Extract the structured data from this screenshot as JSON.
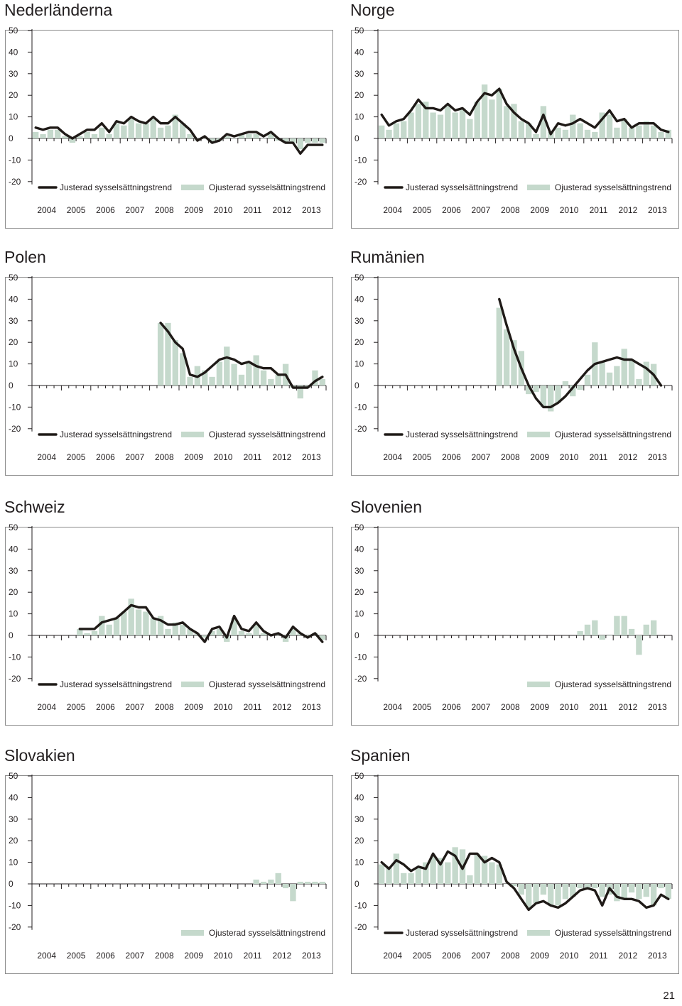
{
  "page_number": "21",
  "colors": {
    "bar": "#c5d9cc",
    "line": "#1f1a17",
    "axis": "#231f20",
    "frame": "#8a8a8a"
  },
  "chart_data": [
    {
      "title": "Nederländerna",
      "type": "bar+line",
      "x_labels": [
        "2004",
        "2005",
        "2006",
        "2007",
        "2008",
        "2009",
        "2010",
        "2011",
        "2012",
        "2013"
      ],
      "y_ticks": [
        50,
        40,
        30,
        20,
        10,
        0,
        -10,
        -20
      ],
      "ylim": [
        -20,
        50
      ],
      "legend_position": "bottom",
      "series": [
        {
          "name": "Justerad sysselsättningstrend",
          "kind": "line",
          "start_q": 0,
          "values": [
            5,
            4,
            5,
            5,
            2,
            0,
            2,
            4,
            4,
            7,
            3,
            8,
            7,
            10,
            8,
            7,
            10,
            7,
            7,
            10,
            7,
            4,
            -1,
            1,
            -2,
            -1,
            2,
            1,
            2,
            3,
            3,
            1,
            3,
            0,
            -2,
            -2,
            -7,
            -3,
            -3,
            -3
          ]
        },
        {
          "name": "Ojusterad sysselsättningstrend",
          "kind": "bar",
          "start_q": 0,
          "values": [
            3,
            2,
            4,
            4,
            1,
            -2,
            1,
            3,
            2,
            5,
            2,
            7,
            6,
            9,
            7,
            7,
            9,
            5,
            6,
            11,
            7,
            2,
            -1,
            0,
            -2,
            -1,
            1,
            0,
            2,
            2,
            2,
            0,
            2,
            -1,
            -2,
            -2,
            -5,
            -2,
            -2,
            -2
          ]
        }
      ]
    },
    {
      "title": "Norge",
      "type": "bar+line",
      "x_labels": [
        "2004",
        "2005",
        "2006",
        "2007",
        "2008",
        "2009",
        "2010",
        "2011",
        "2012",
        "2013"
      ],
      "y_ticks": [
        50,
        40,
        30,
        20,
        10,
        0,
        -10,
        -20
      ],
      "ylim": [
        -20,
        50
      ],
      "legend_position": "bottom",
      "series": [
        {
          "name": "Justerad sysselsättningstrend",
          "kind": "line",
          "start_q": 0,
          "values": [
            11,
            6,
            8,
            9,
            13,
            18,
            14,
            14,
            13,
            16,
            13,
            14,
            11,
            17,
            21,
            20,
            23,
            16,
            12,
            9,
            7,
            3,
            11,
            2,
            7,
            6,
            7,
            9,
            7,
            5,
            9,
            13,
            8,
            9,
            5,
            7,
            7,
            7,
            4,
            3
          ]
        },
        {
          "name": "Ojusterad sysselsättningstrend",
          "kind": "bar",
          "start_q": 0,
          "values": [
            6,
            4,
            7,
            8,
            12,
            16,
            17,
            12,
            11,
            15,
            12,
            14,
            9,
            17,
            25,
            18,
            23,
            15,
            16,
            8,
            7,
            2,
            15,
            3,
            5,
            4,
            11,
            7,
            4,
            3,
            12,
            11,
            5,
            9,
            5,
            6,
            8,
            6,
            3,
            4
          ]
        }
      ]
    },
    {
      "title": "Polen",
      "type": "bar+line",
      "x_labels": [
        "2004",
        "2005",
        "2006",
        "2007",
        "2008",
        "2009",
        "2010",
        "2011",
        "2012",
        "2013"
      ],
      "y_ticks": [
        50,
        40,
        30,
        20,
        10,
        0,
        -10,
        -20
      ],
      "ylim": [
        -20,
        50
      ],
      "legend_position": "bottom",
      "series": [
        {
          "name": "Justerad sysselsättningstrend",
          "kind": "line",
          "start_q": 17,
          "values": [
            29,
            25,
            20,
            17,
            5,
            4,
            6,
            9,
            12,
            13,
            12,
            10,
            11,
            9,
            8,
            8,
            5,
            5,
            -1,
            -1,
            -1,
            2,
            4
          ]
        },
        {
          "name": "Ojusterad sysselsättningstrend",
          "kind": "bar",
          "start_q": 17,
          "values": [
            29,
            29,
            21,
            15,
            4,
            9,
            7,
            4,
            11,
            18,
            10,
            5,
            11,
            14,
            7,
            3,
            5,
            10,
            -1,
            -6,
            -1,
            7,
            3
          ]
        }
      ]
    },
    {
      "title": "Rumänien",
      "type": "bar+line",
      "x_labels": [
        "2004",
        "2005",
        "2006",
        "2007",
        "2008",
        "2009",
        "2010",
        "2011",
        "2012",
        "2013"
      ],
      "y_ticks": [
        50,
        40,
        30,
        20,
        10,
        0,
        -10,
        -20
      ],
      "ylim": [
        -20,
        50
      ],
      "legend_position": "bottom",
      "series": [
        {
          "name": "Justerad sysselsättningstrend",
          "kind": "line",
          "start_q": 16,
          "values": [
            40,
            28,
            17,
            8,
            0,
            -6,
            -10,
            -10,
            -8,
            -5,
            -1,
            3,
            7,
            10,
            11,
            12,
            13,
            12,
            12,
            10,
            8,
            5,
            0
          ]
        },
        {
          "name": "Ojusterad sysselsättningstrend",
          "kind": "bar",
          "start_q": 16,
          "values": [
            36,
            26,
            21,
            16,
            -4,
            -3,
            -10,
            -12,
            -8,
            2,
            -5,
            -2,
            5,
            20,
            11,
            6,
            9,
            17,
            12,
            3,
            11,
            10,
            0
          ]
        }
      ]
    },
    {
      "title": "Schweiz",
      "type": "bar+line",
      "x_labels": [
        "2004",
        "2005",
        "2006",
        "2007",
        "2008",
        "2009",
        "2010",
        "2011",
        "2012",
        "2013"
      ],
      "y_ticks": [
        50,
        40,
        30,
        20,
        10,
        0,
        -10,
        -20
      ],
      "ylim": [
        -20,
        50
      ],
      "legend_position": "bottom",
      "series": [
        {
          "name": "Justerad sysselsättningstrend",
          "kind": "line",
          "start_q": 6,
          "values": [
            3,
            3,
            3,
            6,
            7,
            8,
            11,
            14,
            13,
            13,
            8,
            7,
            5,
            5,
            6,
            3,
            1,
            -3,
            3,
            4,
            -1,
            9,
            3,
            2,
            6,
            2,
            0,
            1,
            -1,
            4,
            1,
            -1,
            1,
            -3
          ]
        },
        {
          "name": "Ojusterad sysselsättningstrend",
          "kind": "bar",
          "start_q": 6,
          "values": [
            3,
            1,
            2,
            9,
            5,
            8,
            11,
            17,
            12,
            11,
            8,
            9,
            3,
            6,
            5,
            3,
            1,
            -1,
            2,
            3,
            -3,
            8,
            2,
            1,
            5,
            1,
            0,
            1,
            -3,
            3,
            1,
            -1,
            1,
            -2
          ]
        }
      ]
    },
    {
      "title": "Slovenien",
      "type": "bar",
      "x_labels": [
        "2004",
        "2005",
        "2006",
        "2007",
        "2008",
        "2009",
        "2010",
        "2011",
        "2012",
        "2013"
      ],
      "y_ticks": [
        50,
        40,
        30,
        20,
        10,
        0,
        -10,
        -20
      ],
      "ylim": [
        -20,
        50
      ],
      "legend_position": "bottom",
      "series": [
        {
          "name": "Ojusterad sysselsättningstrend",
          "kind": "bar",
          "start_q": 27,
          "values": [
            2,
            5,
            7,
            -2,
            0,
            9,
            9,
            3,
            -9,
            5,
            7
          ]
        }
      ]
    },
    {
      "title": "Slovakien",
      "type": "bar",
      "x_labels": [
        "2004",
        "2005",
        "2006",
        "2007",
        "2008",
        "2009",
        "2010",
        "2011",
        "2012",
        "2013"
      ],
      "y_ticks": [
        50,
        40,
        30,
        20,
        10,
        0,
        -10,
        -20
      ],
      "ylim": [
        -20,
        50
      ],
      "legend_position": "bottom",
      "series": [
        {
          "name": "Ojusterad sysselsättningstrend",
          "kind": "bar",
          "start_q": 30,
          "values": [
            2,
            1,
            2,
            5,
            -2,
            -8,
            1,
            1,
            1,
            1
          ]
        }
      ]
    },
    {
      "title": "Spanien",
      "type": "bar+line",
      "x_labels": [
        "2004",
        "2005",
        "2006",
        "2007",
        "2008",
        "2009",
        "2010",
        "2011",
        "2012",
        "2013"
      ],
      "y_ticks": [
        50,
        40,
        30,
        20,
        10,
        0,
        -10,
        -20
      ],
      "ylim": [
        -20,
        50
      ],
      "legend_position": "bottom",
      "series": [
        {
          "name": "Justerad sysselsättningstrend",
          "kind": "line",
          "start_q": 0,
          "values": [
            10,
            7,
            11,
            9,
            6,
            8,
            7,
            14,
            9,
            15,
            13,
            7,
            14,
            14,
            10,
            12,
            10,
            1,
            -2,
            -7,
            -12,
            -9,
            -8,
            -10,
            -11,
            -9,
            -6,
            -3,
            -2,
            -3,
            -10,
            -2,
            -6,
            -7,
            -7,
            -8,
            -11,
            -10,
            -5,
            -7
          ]
        },
        {
          "name": "Ojusterad sysselsättningstrend",
          "kind": "bar",
          "start_q": 0,
          "values": [
            9,
            8,
            14,
            5,
            5,
            8,
            10,
            13,
            12,
            10,
            17,
            16,
            4,
            14,
            13,
            10,
            9,
            0,
            -1,
            -5,
            -11,
            -9,
            -5,
            -10,
            -10,
            -7,
            -6,
            -2,
            -2,
            -2,
            -6,
            -5,
            -8,
            -7,
            -4,
            -7,
            -6,
            -10,
            -2,
            -7
          ]
        }
      ]
    }
  ]
}
